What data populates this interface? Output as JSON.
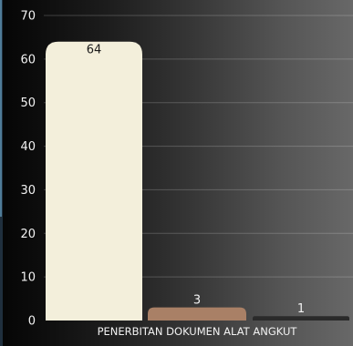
{
  "chart_data": {
    "type": "bar",
    "title": "",
    "xlabel": "",
    "ylabel": "",
    "categories": [
      "PENERBITAN DOKUMEN ALAT ANGKUT"
    ],
    "series": [
      {
        "color": "#f3efdb",
        "values": [
          64
        ]
      },
      {
        "color": "#a98066",
        "values": [
          3
        ]
      },
      {
        "color": "#2a2a2a",
        "values": [
          1
        ]
      }
    ],
    "data_labels": [
      "64",
      "3",
      "1"
    ],
    "ylim": [
      0,
      70
    ],
    "yticks": [
      0,
      10,
      20,
      30,
      40,
      50,
      60,
      70
    ],
    "grid": true,
    "legend": "none"
  }
}
